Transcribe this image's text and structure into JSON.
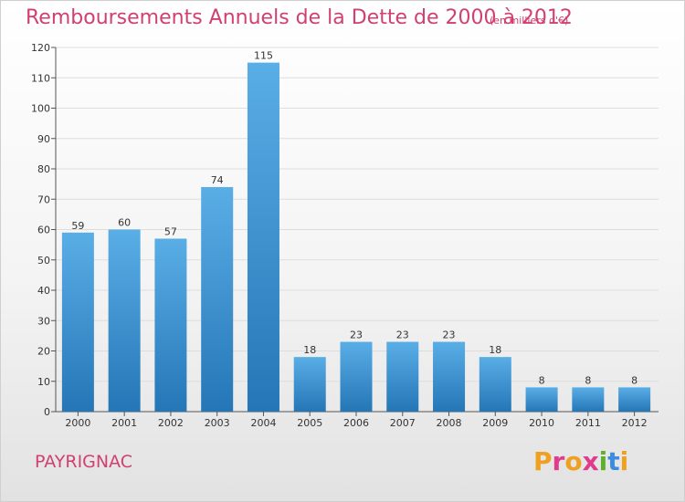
{
  "header": {
    "title": "Remboursements Annuels de la Dette de 2000 à 2012",
    "subtitle": "(en milliers d'€)"
  },
  "footer": {
    "commune": "PAYRIGNAC",
    "logo_letters": [
      "P",
      "r",
      "o",
      "x",
      "i",
      "t",
      "i"
    ]
  },
  "colors": {
    "title": "#d04070",
    "bar_top": "#5aaee6",
    "bar_bottom": "#2476b6",
    "logo": [
      "#f0a020",
      "#e03c8c",
      "#f0a020",
      "#e03c8c",
      "#60b030",
      "#3c8ce0",
      "#f0a020"
    ]
  },
  "chart_data": {
    "type": "bar",
    "categories": [
      "2000",
      "2001",
      "2002",
      "2003",
      "2004",
      "2005",
      "2006",
      "2007",
      "2008",
      "2009",
      "2010",
      "2011",
      "2012"
    ],
    "values": [
      59,
      60,
      57,
      74,
      115,
      18,
      23,
      23,
      23,
      18,
      8,
      8,
      8
    ],
    "title": "Remboursements Annuels de la Dette de 2000 à 2012",
    "ylim": [
      0,
      120
    ],
    "yticks": [
      0,
      10,
      20,
      30,
      40,
      50,
      60,
      70,
      80,
      90,
      100,
      110,
      120
    ],
    "grid": true
  }
}
